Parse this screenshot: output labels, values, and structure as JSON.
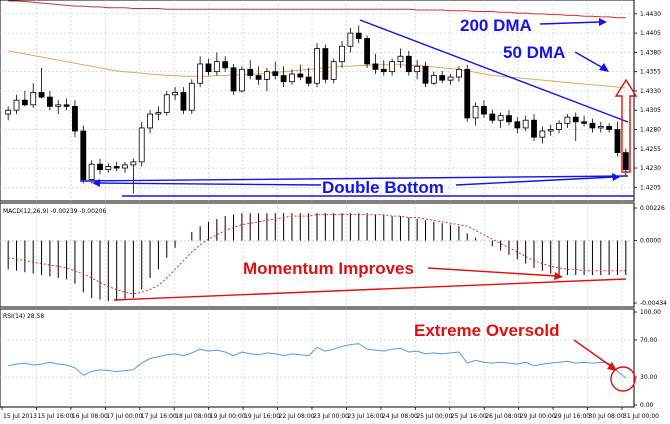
{
  "chart_data": {
    "type": "candlestick",
    "panels": {
      "price": {
        "ylim": [
          1.4195,
          1.4435
        ],
        "ticks": [
          "1.4430",
          "1.4405",
          "1.4380",
          "1.4355",
          "1.4330",
          "1.4305",
          "1.4280",
          "1.4255",
          "1.4230",
          "1.4205"
        ],
        "candles": [
          {
            "o": 1.43,
            "h": 1.431,
            "l": 1.4292,
            "c": 1.4305
          },
          {
            "o": 1.4305,
            "h": 1.4325,
            "l": 1.43,
            "c": 1.4318
          },
          {
            "o": 1.4318,
            "h": 1.433,
            "l": 1.431,
            "c": 1.4312
          },
          {
            "o": 1.4312,
            "h": 1.434,
            "l": 1.4308,
            "c": 1.4328
          },
          {
            "o": 1.4328,
            "h": 1.436,
            "l": 1.432,
            "c": 1.4322
          },
          {
            "o": 1.4322,
            "h": 1.433,
            "l": 1.4305,
            "c": 1.431
          },
          {
            "o": 1.431,
            "h": 1.4318,
            "l": 1.43,
            "c": 1.4312
          },
          {
            "o": 1.4312,
            "h": 1.432,
            "l": 1.4305,
            "c": 1.431
          },
          {
            "o": 1.431,
            "h": 1.4318,
            "l": 1.427,
            "c": 1.4278
          },
          {
            "o": 1.4278,
            "h": 1.4285,
            "l": 1.421,
            "c": 1.4215
          },
          {
            "o": 1.4215,
            "h": 1.424,
            "l": 1.421,
            "c": 1.4235
          },
          {
            "o": 1.4235,
            "h": 1.4242,
            "l": 1.4222,
            "c": 1.4228
          },
          {
            "o": 1.4228,
            "h": 1.4236,
            "l": 1.4224,
            "c": 1.4232
          },
          {
            "o": 1.4232,
            "h": 1.4238,
            "l": 1.4226,
            "c": 1.423
          },
          {
            "o": 1.423,
            "h": 1.4238,
            "l": 1.4224,
            "c": 1.4234
          },
          {
            "o": 1.4234,
            "h": 1.4242,
            "l": 1.4197,
            "c": 1.4238
          },
          {
            "o": 1.4238,
            "h": 1.429,
            "l": 1.4232,
            "c": 1.4282
          },
          {
            "o": 1.4282,
            "h": 1.4305,
            "l": 1.4275,
            "c": 1.43
          },
          {
            "o": 1.43,
            "h": 1.431,
            "l": 1.4292,
            "c": 1.4302
          },
          {
            "o": 1.4302,
            "h": 1.433,
            "l": 1.4298,
            "c": 1.4325
          },
          {
            "o": 1.4325,
            "h": 1.4335,
            "l": 1.4318,
            "c": 1.4328
          },
          {
            "o": 1.4328,
            "h": 1.4335,
            "l": 1.43,
            "c": 1.4305
          },
          {
            "o": 1.4305,
            "h": 1.4345,
            "l": 1.43,
            "c": 1.434
          },
          {
            "o": 1.434,
            "h": 1.4375,
            "l": 1.4335,
            "c": 1.4365
          },
          {
            "o": 1.4365,
            "h": 1.4372,
            "l": 1.435,
            "c": 1.4355
          },
          {
            "o": 1.4355,
            "h": 1.438,
            "l": 1.435,
            "c": 1.4368
          },
          {
            "o": 1.4368,
            "h": 1.4375,
            "l": 1.4355,
            "c": 1.436
          },
          {
            "o": 1.436,
            "h": 1.4365,
            "l": 1.4325,
            "c": 1.433
          },
          {
            "o": 1.433,
            "h": 1.4362,
            "l": 1.4328,
            "c": 1.4358
          },
          {
            "o": 1.4358,
            "h": 1.437,
            "l": 1.4345,
            "c": 1.435
          },
          {
            "o": 1.435,
            "h": 1.4362,
            "l": 1.4338,
            "c": 1.4345
          },
          {
            "o": 1.4345,
            "h": 1.436,
            "l": 1.433,
            "c": 1.4355
          },
          {
            "o": 1.4355,
            "h": 1.4368,
            "l": 1.4345,
            "c": 1.435
          },
          {
            "o": 1.435,
            "h": 1.4362,
            "l": 1.4335,
            "c": 1.4342
          },
          {
            "o": 1.4342,
            "h": 1.4358,
            "l": 1.4338,
            "c": 1.4352
          },
          {
            "o": 1.4352,
            "h": 1.4364,
            "l": 1.4344,
            "c": 1.4348
          },
          {
            "o": 1.4348,
            "h": 1.436,
            "l": 1.4336,
            "c": 1.434
          },
          {
            "o": 1.434,
            "h": 1.4392,
            "l": 1.4335,
            "c": 1.4385
          },
          {
            "o": 1.4385,
            "h": 1.439,
            "l": 1.434,
            "c": 1.4345
          },
          {
            "o": 1.4345,
            "h": 1.4372,
            "l": 1.434,
            "c": 1.4368
          },
          {
            "o": 1.4368,
            "h": 1.4395,
            "l": 1.436,
            "c": 1.4388
          },
          {
            "o": 1.4388,
            "h": 1.4412,
            "l": 1.438,
            "c": 1.4405
          },
          {
            "o": 1.4405,
            "h": 1.4415,
            "l": 1.4392,
            "c": 1.4398
          },
          {
            "o": 1.4398,
            "h": 1.4402,
            "l": 1.436,
            "c": 1.4365
          },
          {
            "o": 1.4365,
            "h": 1.4378,
            "l": 1.4352,
            "c": 1.4358
          },
          {
            "o": 1.4358,
            "h": 1.437,
            "l": 1.435,
            "c": 1.4355
          },
          {
            "o": 1.4355,
            "h": 1.4372,
            "l": 1.435,
            "c": 1.4368
          },
          {
            "o": 1.4368,
            "h": 1.4385,
            "l": 1.436,
            "c": 1.4375
          },
          {
            "o": 1.4375,
            "h": 1.4382,
            "l": 1.435,
            "c": 1.4355
          },
          {
            "o": 1.4355,
            "h": 1.437,
            "l": 1.4345,
            "c": 1.4362
          },
          {
            "o": 1.4362,
            "h": 1.4368,
            "l": 1.4335,
            "c": 1.434
          },
          {
            "o": 1.434,
            "h": 1.4355,
            "l": 1.4338,
            "c": 1.435
          },
          {
            "o": 1.435,
            "h": 1.4356,
            "l": 1.434,
            "c": 1.4344
          },
          {
            "o": 1.4344,
            "h": 1.4352,
            "l": 1.4338,
            "c": 1.4348
          },
          {
            "o": 1.4348,
            "h": 1.4362,
            "l": 1.4342,
            "c": 1.4358
          },
          {
            "o": 1.4358,
            "h": 1.4364,
            "l": 1.429,
            "c": 1.4295
          },
          {
            "o": 1.4295,
            "h": 1.4315,
            "l": 1.4285,
            "c": 1.431
          },
          {
            "o": 1.431,
            "h": 1.4318,
            "l": 1.4295,
            "c": 1.43
          },
          {
            "o": 1.43,
            "h": 1.4306,
            "l": 1.4288,
            "c": 1.4292
          },
          {
            "o": 1.4292,
            "h": 1.4302,
            "l": 1.4282,
            "c": 1.4298
          },
          {
            "o": 1.4298,
            "h": 1.4305,
            "l": 1.4285,
            "c": 1.429
          },
          {
            "o": 1.429,
            "h": 1.4296,
            "l": 1.4275,
            "c": 1.4282
          },
          {
            "o": 1.4282,
            "h": 1.4298,
            "l": 1.4278,
            "c": 1.4292
          },
          {
            "o": 1.4292,
            "h": 1.43,
            "l": 1.4265,
            "c": 1.427
          },
          {
            "o": 1.427,
            "h": 1.4284,
            "l": 1.4262,
            "c": 1.4278
          },
          {
            "o": 1.4278,
            "h": 1.4286,
            "l": 1.4272,
            "c": 1.428
          },
          {
            "o": 1.428,
            "h": 1.4292,
            "l": 1.4275,
            "c": 1.4288
          },
          {
            "o": 1.4288,
            "h": 1.43,
            "l": 1.4282,
            "c": 1.4296
          },
          {
            "o": 1.4296,
            "h": 1.4302,
            "l": 1.4265,
            "c": 1.429
          },
          {
            "o": 1.429,
            "h": 1.4298,
            "l": 1.4284,
            "c": 1.4288
          },
          {
            "o": 1.4288,
            "h": 1.4294,
            "l": 1.4276,
            "c": 1.4282
          },
          {
            "o": 1.4282,
            "h": 1.429,
            "l": 1.4276,
            "c": 1.4284
          },
          {
            "o": 1.4284,
            "h": 1.4288,
            "l": 1.4276,
            "c": 1.428
          },
          {
            "o": 1.428,
            "h": 1.429,
            "l": 1.4245,
            "c": 1.425
          },
          {
            "o": 1.425,
            "h": 1.4255,
            "l": 1.422,
            "c": 1.4228
          }
        ],
        "dma50": [
          1.4382,
          1.438,
          1.4378,
          1.4376,
          1.4374,
          1.4372,
          1.437,
          1.4368,
          1.4366,
          1.4364,
          1.4362,
          1.436,
          1.4358,
          1.4356,
          1.4355,
          1.4354,
          1.4353,
          1.4352,
          1.4351,
          1.435,
          1.435,
          1.4349,
          1.4349,
          1.4349,
          1.4349,
          1.435,
          1.435,
          1.4351,
          1.4351,
          1.4352,
          1.4352,
          1.4353,
          1.4354,
          1.4355,
          1.4356,
          1.4357,
          1.4358,
          1.4359,
          1.436,
          1.4361,
          1.4362,
          1.4362,
          1.4363,
          1.4363,
          1.4364,
          1.4364,
          1.4364,
          1.4364,
          1.4363,
          1.4363,
          1.4362,
          1.4361,
          1.436,
          1.4359,
          1.4358,
          1.4356,
          1.4354,
          1.4352,
          1.435,
          1.4349,
          1.4348,
          1.4347,
          1.4346,
          1.4345,
          1.4344,
          1.4343,
          1.4342,
          1.4341,
          1.434,
          1.4339,
          1.4338,
          1.4337,
          1.4336,
          1.4335,
          1.4334
        ],
        "dma200": [
          1.4448,
          1.4447,
          1.4446,
          1.4445,
          1.4444,
          1.4443,
          1.4442,
          1.4441,
          1.444,
          1.444,
          1.4439,
          1.4439,
          1.4438,
          1.4438,
          1.4438,
          1.4437,
          1.4437,
          1.4437,
          1.4437,
          1.4436,
          1.4436,
          1.4436,
          1.4436,
          1.4436,
          1.4436,
          1.4436,
          1.4436,
          1.4436,
          1.4436,
          1.4436,
          1.4436,
          1.4436,
          1.4436,
          1.4436,
          1.4436,
          1.4436,
          1.4436,
          1.4436,
          1.4436,
          1.4436,
          1.4436,
          1.4436,
          1.4436,
          1.4436,
          1.4436,
          1.4436,
          1.4436,
          1.4436,
          1.4436,
          1.4435,
          1.4435,
          1.4435,
          1.4435,
          1.4434,
          1.4434,
          1.4434,
          1.4433,
          1.4433,
          1.4433,
          1.4432,
          1.4432,
          1.4431,
          1.4431,
          1.443,
          1.443,
          1.4429,
          1.4429,
          1.4428,
          1.4428,
          1.4427,
          1.4427,
          1.4426,
          1.4426,
          1.4425,
          1.4425
        ]
      },
      "macd": {
        "label": "MACD(12,26,9) -0.00239 -0.00206",
        "ylim": [
          -0.00434,
          0.00226
        ],
        "ticks": [
          "0.00226",
          "0.0000",
          "-0.00434"
        ],
        "histogram": [
          -0.002,
          -0.0021,
          -0.0022,
          -0.0023,
          -0.0024,
          -0.0025,
          -0.0026,
          -0.0027,
          -0.003,
          -0.0036,
          -0.004,
          -0.0041,
          -0.0042,
          -0.0042,
          -0.0041,
          -0.004,
          -0.0034,
          -0.0026,
          -0.002,
          -0.0012,
          -0.0005,
          0.0,
          0.0006,
          0.001,
          0.0013,
          0.0015,
          0.0017,
          0.0018,
          0.0019,
          0.0019,
          0.0019,
          0.0019,
          0.0019,
          0.0019,
          0.0019,
          0.0019,
          0.0019,
          0.0019,
          0.0019,
          0.0019,
          0.0019,
          0.0019,
          0.0019,
          0.0019,
          0.0018,
          0.0018,
          0.0017,
          0.0017,
          0.0016,
          0.0015,
          0.0014,
          0.0013,
          0.0012,
          0.0011,
          0.001,
          0.0005,
          0.0002,
          0.0,
          -0.0004,
          -0.0007,
          -0.001,
          -0.0013,
          -0.0016,
          -0.0019,
          -0.0021,
          -0.0023,
          -0.0024,
          -0.0024,
          -0.0024,
          -0.0024,
          -0.0024,
          -0.0024,
          -0.0024,
          -0.0024,
          -0.0024
        ],
        "signal": [
          -0.0012,
          -0.0013,
          -0.0014,
          -0.0015,
          -0.0016,
          -0.0017,
          -0.0018,
          -0.0019,
          -0.0021,
          -0.0023,
          -0.0026,
          -0.0029,
          -0.0032,
          -0.0034,
          -0.0036,
          -0.0037,
          -0.0036,
          -0.0034,
          -0.0031,
          -0.0026,
          -0.002,
          -0.0014,
          -0.0008,
          -0.0003,
          0.0001,
          0.0004,
          0.0007,
          0.0009,
          0.0011,
          0.0012,
          0.0013,
          0.0014,
          0.0015,
          0.0016,
          0.0017,
          0.0017,
          0.0017,
          0.0018,
          0.0018,
          0.0018,
          0.0018,
          0.0018,
          0.0018,
          0.0018,
          0.0018,
          0.0018,
          0.0017,
          0.0017,
          0.0016,
          0.0016,
          0.0015,
          0.0014,
          0.0013,
          0.0012,
          0.0011,
          0.001,
          0.0007,
          0.0004,
          0.0001,
          -0.0002,
          -0.0005,
          -0.0008,
          -0.0011,
          -0.0014,
          -0.0016,
          -0.0018,
          -0.0019,
          -0.002,
          -0.002,
          -0.0021,
          -0.0021,
          -0.0021,
          -0.0021,
          -0.0021,
          -0.0021
        ]
      },
      "rsi": {
        "label": "RSI(14) 28.58",
        "ylim": [
          0,
          100
        ],
        "ticks": [
          "100.00",
          "70.00",
          "30.00",
          "0.00"
        ],
        "values": [
          42,
          44,
          45,
          43,
          44,
          46,
          44,
          43,
          40,
          32,
          36,
          38,
          37,
          36,
          37,
          38,
          45,
          50,
          52,
          54,
          55,
          53,
          56,
          60,
          58,
          59,
          57,
          53,
          57,
          55,
          54,
          56,
          55,
          53,
          55,
          54,
          53,
          62,
          58,
          60,
          63,
          65,
          66,
          60,
          59,
          58,
          60,
          61,
          57,
          58,
          55,
          56,
          55,
          56,
          57,
          45,
          48,
          46,
          45,
          46,
          45,
          44,
          46,
          42,
          44,
          45,
          46,
          47,
          45,
          46,
          45,
          46,
          45,
          36,
          29
        ]
      }
    },
    "x_labels": [
      "15 Jul 2013",
      "15 Jul 16:00",
      "16 Jul 08:00",
      "17 Jul 00:00",
      "17 Jul 16:00",
      "18 Jul 08:00",
      "19 Jul 00:00",
      "19 Jul 16:00",
      "22 Jul 08:00",
      "23 Jul 00:00",
      "23 Jul 16:00",
      "24 Jul 08:00",
      "25 Jul 00:00",
      "25 Jul 16:00",
      "26 Jul 08:00",
      "29 Jul 00:00",
      "29 Jul 16:00",
      "30 Jul 08:00",
      "31 Jul 00:00"
    ],
    "annotations": [
      "200 DMA",
      "50 DMA",
      "Double Bottom",
      "Momentum Improves",
      "Extreme Oversold"
    ],
    "colors": {
      "annotation_blue": "#1414e6",
      "annotation_red": "#e01010",
      "dma50": "#e0a860",
      "dma200": "#d03030",
      "rsi_line": "#5a9ad8",
      "signal_line": "#e03030",
      "grid": "#c8c8c8"
    }
  }
}
